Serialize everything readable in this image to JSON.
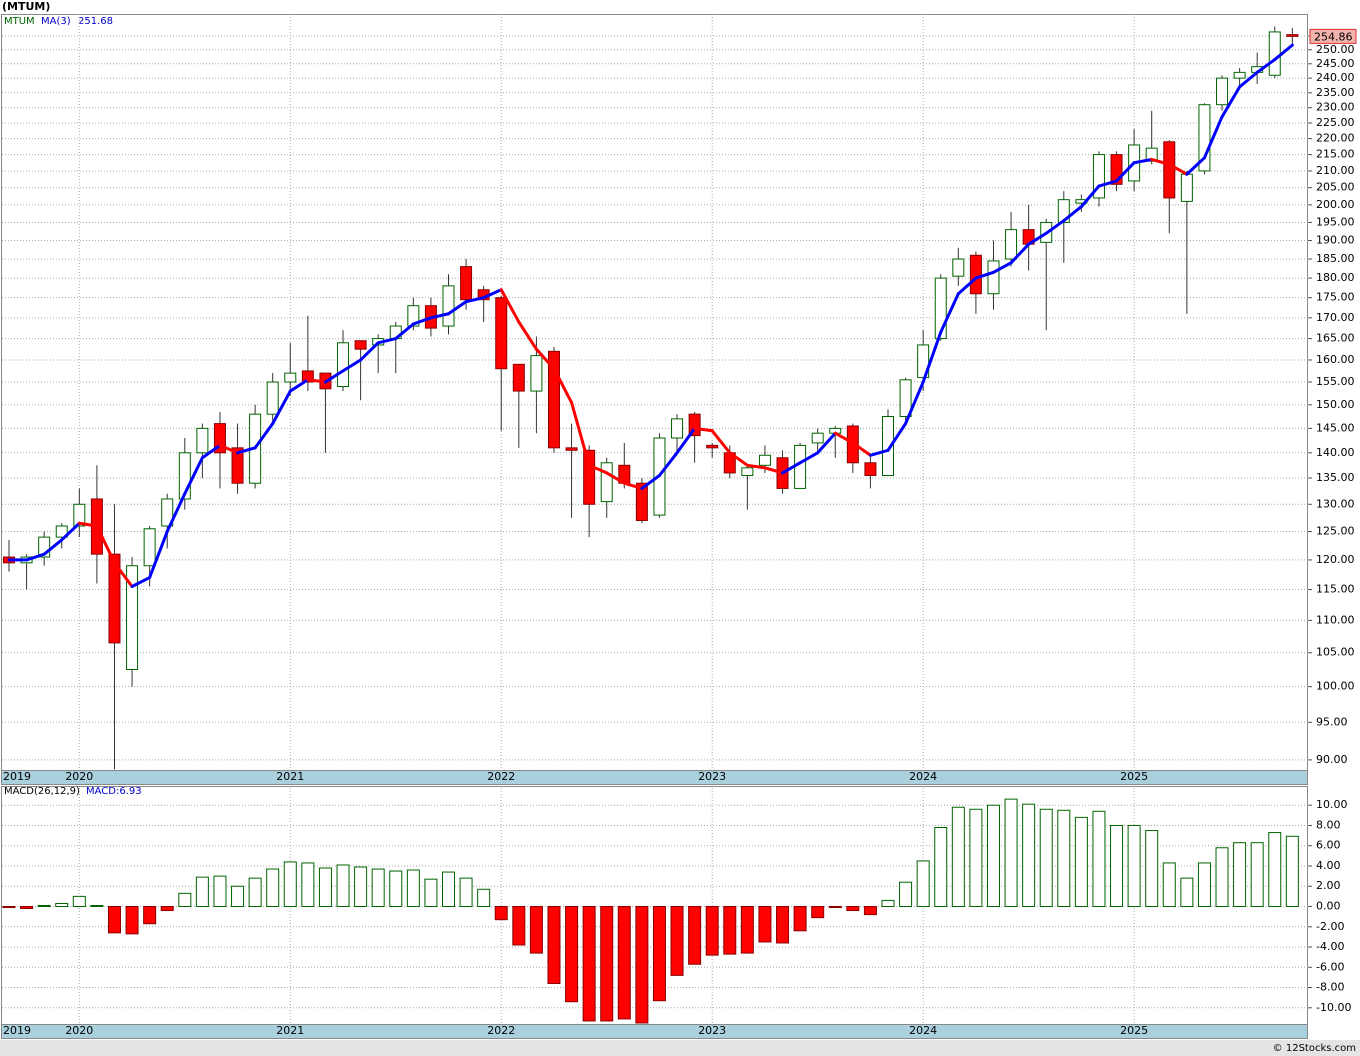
{
  "chart_data": [
    {
      "type": "candlestick",
      "title": "(MTUM)",
      "ticker": "MTUM",
      "categories": [
        "2019",
        null,
        null,
        null,
        "2020",
        null,
        null,
        null,
        null,
        null,
        null,
        null,
        null,
        null,
        null,
        null,
        "2021",
        null,
        null,
        null,
        null,
        null,
        null,
        null,
        null,
        null,
        null,
        null,
        "2022",
        null,
        null,
        null,
        null,
        null,
        null,
        null,
        null,
        null,
        null,
        null,
        "2023",
        null,
        null,
        null,
        null,
        null,
        null,
        null,
        null,
        null,
        null,
        null,
        "2024",
        null,
        null,
        null,
        null,
        null,
        null,
        null,
        null,
        null,
        null,
        null,
        "2025",
        null,
        null,
        null,
        null,
        null,
        null,
        null,
        null,
        null
      ],
      "open": [
        120.5,
        119.5,
        120.5,
        124,
        126,
        131,
        121,
        102.5,
        119,
        126,
        131,
        140,
        146,
        141,
        134,
        148,
        155,
        157.5,
        157,
        154,
        164.5,
        163.5,
        165,
        168,
        173,
        168,
        183,
        177,
        175,
        159,
        153,
        162,
        141,
        140.5,
        130.5,
        137.5,
        134,
        128,
        143,
        148,
        141.5,
        140,
        135.5,
        137.5,
        139,
        133,
        142,
        144,
        145.5,
        138,
        135.5,
        147.5,
        156,
        165,
        180.5,
        186,
        176,
        185,
        193,
        189.5,
        195,
        200.5,
        202,
        215,
        207,
        213,
        219,
        201,
        210,
        231,
        240,
        242,
        241,
        255.5
      ],
      "high": [
        123.5,
        121,
        125,
        126.5,
        133,
        137.5,
        130,
        120.5,
        126,
        132,
        143,
        146,
        148.5,
        146,
        150,
        157,
        164,
        170.5,
        156,
        167,
        164,
        166,
        169,
        175,
        175,
        181,
        185,
        178,
        175.5,
        159,
        165.5,
        163,
        146,
        141.5,
        139,
        142,
        135,
        144,
        148,
        148.5,
        142,
        141.5,
        137.5,
        141.5,
        140.5,
        142,
        145,
        145.5,
        146,
        139.5,
        149,
        156,
        167,
        181,
        188,
        187,
        190,
        198,
        200,
        196,
        204,
        203,
        216,
        216,
        223,
        229,
        219.5,
        210,
        231.5,
        241,
        243.5,
        249,
        258.5,
        258
      ],
      "low": [
        118,
        115,
        119,
        122,
        124,
        116,
        88.8,
        100,
        115.5,
        122,
        129,
        135,
        133,
        132,
        133,
        146,
        152,
        153,
        140,
        153,
        151,
        157,
        157,
        167,
        165.5,
        166,
        172,
        169,
        144.5,
        141,
        144,
        140,
        127.5,
        124,
        127.5,
        133,
        126.5,
        127.5,
        139.5,
        138,
        139,
        135,
        129,
        136,
        132,
        133,
        140,
        139,
        136,
        133,
        135.5,
        146,
        153,
        164.5,
        178,
        171,
        172,
        183,
        182,
        167,
        184,
        198,
        199.5,
        204,
        204,
        212,
        192,
        171,
        209,
        229,
        236,
        238,
        240,
        251
      ],
      "close": [
        119.5,
        120.5,
        124,
        126,
        130,
        121,
        106.5,
        119,
        125.5,
        131,
        140,
        145,
        140,
        134,
        148,
        155,
        157,
        155,
        153.5,
        164,
        162.5,
        165,
        168,
        173,
        167.5,
        178,
        174.5,
        174.5,
        158,
        153,
        161,
        141,
        140.5,
        130,
        138,
        134,
        127,
        143,
        147,
        143.5,
        141,
        136,
        137,
        139.5,
        133,
        141.5,
        144,
        145,
        138,
        135.5,
        147.5,
        155.5,
        163.5,
        180,
        185,
        176,
        184.5,
        193,
        189,
        195,
        201.5,
        201.5,
        215,
        206,
        218,
        217,
        202,
        209,
        231,
        240,
        242,
        244,
        256.5,
        254.86
      ],
      "up_color": "#ffffff",
      "down_color": "#ff0000",
      "series": [
        {
          "name": "MA(3)",
          "color": "#0000ff",
          "down_color": "#ff0000",
          "values": [
            120,
            120,
            121,
            123.5,
            126.5,
            126,
            119.5,
            115.5,
            117,
            125,
            132,
            139,
            141.5,
            140,
            141,
            146,
            153,
            155.5,
            155,
            157.5,
            160,
            164,
            165,
            168.5,
            170,
            171,
            174,
            175,
            177,
            169,
            162.5,
            158,
            150.5,
            137.5,
            136,
            134,
            133,
            135.5,
            140,
            145,
            144.5,
            140,
            137.5,
            137,
            136,
            138,
            140,
            144,
            142,
            139.5,
            140.5,
            146,
            155,
            166.5,
            176,
            180,
            181.5,
            184,
            189,
            192,
            195.5,
            199.5,
            205.5,
            207,
            212.5,
            213.5,
            212,
            209,
            214,
            227,
            237,
            242,
            246.5,
            251.68
          ]
        }
      ],
      "ylim": [
        88.7,
        263.2
      ],
      "log_scale": true,
      "grid": true,
      "yticks": [
        {
          "value": 255,
          "label": "255.00"
        },
        {
          "value": 250,
          "label": "250.00"
        },
        {
          "value": 245,
          "label": "245.00"
        },
        {
          "value": 240,
          "label": "240.00"
        },
        {
          "value": 235,
          "label": "235.00"
        },
        {
          "value": 230,
          "label": "230.00"
        },
        {
          "value": 225,
          "label": "225.00"
        },
        {
          "value": 220,
          "label": "220.00"
        },
        {
          "value": 215,
          "label": "215.00"
        },
        {
          "value": 210,
          "label": "210.00"
        },
        {
          "value": 205,
          "label": "205.00"
        },
        {
          "value": 200,
          "label": "200.00"
        },
        {
          "value": 195,
          "label": "195.00"
        },
        {
          "value": 190,
          "label": "190.00"
        },
        {
          "value": 185,
          "label": "185.00"
        },
        {
          "value": 180,
          "label": "180.00"
        },
        {
          "value": 175,
          "label": "175.00"
        },
        {
          "value": 170,
          "label": "170.00"
        },
        {
          "value": 165,
          "label": "165.00"
        },
        {
          "value": 160,
          "label": "160.00"
        },
        {
          "value": 155,
          "label": "155.00"
        },
        {
          "value": 150,
          "label": "150.00"
        },
        {
          "value": 145,
          "label": "145.00"
        },
        {
          "value": 140,
          "label": "140.00"
        },
        {
          "value": 135,
          "label": "135.00"
        },
        {
          "value": 130,
          "label": "130.00"
        },
        {
          "value": 125,
          "label": "125.00"
        },
        {
          "value": 120,
          "label": "120.00"
        },
        {
          "value": 115,
          "label": "115.00"
        },
        {
          "value": 110,
          "label": "110.00"
        },
        {
          "value": 105,
          "label": "105.00"
        },
        {
          "value": 100,
          "label": "100.00"
        },
        {
          "value": 95,
          "label": "95.00"
        },
        {
          "value": 90,
          "label": "90.00"
        }
      ]
    },
    {
      "type": "bar",
      "title": "MACD(26,12,9)",
      "label": "MACD:6.93",
      "categories": [
        "2019",
        null,
        null,
        null,
        "2020",
        null,
        null,
        null,
        null,
        null,
        null,
        null,
        null,
        null,
        null,
        null,
        "2021",
        null,
        null,
        null,
        null,
        null,
        null,
        null,
        null,
        null,
        null,
        null,
        "2022",
        null,
        null,
        null,
        null,
        null,
        null,
        null,
        null,
        null,
        null,
        null,
        "2023",
        null,
        null,
        null,
        null,
        null,
        null,
        null,
        null,
        null,
        null,
        null,
        "2024",
        null,
        null,
        null,
        null,
        null,
        null,
        null,
        null,
        null,
        null,
        null,
        "2025",
        null,
        null,
        null,
        null,
        null,
        null,
        null,
        null,
        null
      ],
      "values": [
        -0.1,
        -0.2,
        0.1,
        0.3,
        1.0,
        0.1,
        -2.6,
        -2.7,
        -1.7,
        -0.4,
        1.3,
        2.9,
        3.0,
        2.0,
        2.8,
        3.7,
        4.4,
        4.3,
        3.8,
        4.1,
        3.9,
        3.7,
        3.5,
        3.6,
        2.7,
        3.4,
        2.8,
        1.7,
        -1.3,
        -3.8,
        -4.6,
        -7.6,
        -9.4,
        -11.3,
        -11.3,
        -11.1,
        -11.5,
        -9.3,
        -6.8,
        -5.7,
        -4.8,
        -4.7,
        -4.6,
        -3.5,
        -3.6,
        -2.4,
        -1.1,
        -0.1,
        -0.4,
        -0.8,
        0.6,
        2.4,
        4.5,
        7.8,
        9.8,
        9.6,
        10.0,
        10.6,
        10.1,
        9.6,
        9.5,
        8.8,
        9.4,
        8.0,
        8.0,
        7.5,
        4.3,
        2.8,
        4.3,
        5.8,
        6.3,
        6.3,
        7.3,
        6.93
      ],
      "up_color": "#006400",
      "down_color": "#ff0000",
      "ylim": [
        -11.6,
        11.7
      ],
      "log_scale": false,
      "grid": true,
      "yticks": [
        {
          "value": 10,
          "label": "10.00"
        },
        {
          "value": 8,
          "label": "8.00"
        },
        {
          "value": 6,
          "label": "6.00"
        },
        {
          "value": 4,
          "label": "4.00"
        },
        {
          "value": 2,
          "label": "2.00"
        },
        {
          "value": 0,
          "label": "0.00"
        },
        {
          "value": -2,
          "label": "-2.00"
        },
        {
          "value": -4,
          "label": "-4.00"
        },
        {
          "value": -6,
          "label": "-6.00"
        },
        {
          "value": -8,
          "label": "-8.00"
        },
        {
          "value": -10,
          "label": "-10.00"
        }
      ]
    }
  ],
  "footer": "© 12Stocks.com"
}
